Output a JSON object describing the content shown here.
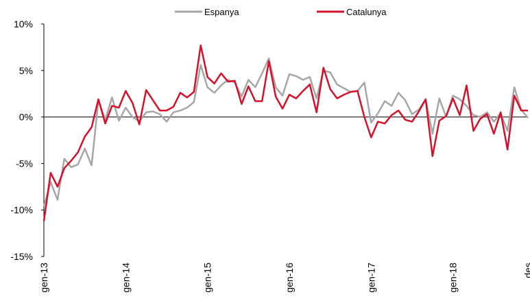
{
  "chart_data": {
    "type": "line",
    "categories": [
      "gen-13",
      null,
      null,
      null,
      null,
      null,
      null,
      null,
      null,
      null,
      null,
      null,
      "gen-14",
      null,
      null,
      null,
      null,
      null,
      null,
      null,
      null,
      null,
      null,
      null,
      "gen-15",
      null,
      null,
      null,
      null,
      null,
      null,
      null,
      null,
      null,
      null,
      null,
      "gen-16",
      null,
      null,
      null,
      null,
      null,
      null,
      null,
      null,
      null,
      null,
      null,
      "gen-17",
      null,
      null,
      null,
      null,
      null,
      null,
      null,
      null,
      null,
      null,
      null,
      "gen-18",
      null,
      null,
      null,
      null,
      null,
      null,
      null,
      null,
      null,
      null,
      "des"
    ],
    "series": [
      {
        "name": "Espanya",
        "color": "#a6a6a6",
        "values": [
          -9.6,
          -7.0,
          -8.9,
          -4.5,
          -5.4,
          -5.1,
          -3.4,
          -5.2,
          1.8,
          -0.3,
          2.1,
          -0.4,
          1.0,
          0.0,
          -0.5,
          0.5,
          0.6,
          0.3,
          -0.5,
          0.5,
          0.7,
          1.0,
          1.6,
          5.6,
          3.2,
          2.6,
          3.4,
          4.0,
          3.7,
          2.2,
          4.0,
          3.2,
          4.7,
          6.3,
          3.2,
          2.3,
          4.6,
          4.4,
          4.0,
          4.3,
          2.0,
          5.0,
          4.8,
          3.5,
          3.1,
          2.7,
          2.8,
          3.7,
          -0.6,
          0.4,
          1.7,
          1.2,
          2.6,
          1.8,
          0.3,
          0.8,
          1.9,
          -1.8,
          2.0,
          0.0,
          2.3,
          1.9,
          1.2,
          0.2,
          0.0,
          0.5,
          -0.5,
          0.4,
          -1.5,
          3.2,
          0.8,
          -0.1
        ]
      },
      {
        "name": "Catalunya",
        "color": "#d7102a",
        "values": [
          -11.2,
          -6.0,
          -7.5,
          -5.5,
          -4.7,
          -3.8,
          -2.1,
          -1.1,
          1.9,
          -0.7,
          1.2,
          1.0,
          2.8,
          1.5,
          -0.8,
          2.9,
          1.8,
          0.7,
          0.7,
          1.1,
          2.6,
          2.1,
          2.7,
          7.7,
          4.3,
          3.6,
          4.7,
          3.8,
          3.9,
          1.4,
          3.3,
          1.7,
          1.7,
          6.0,
          2.2,
          0.9,
          2.4,
          2.0,
          2.8,
          3.5,
          0.5,
          5.3,
          3.0,
          2.0,
          2.4,
          2.7,
          2.8,
          0.0,
          -2.2,
          -0.5,
          -0.7,
          0.2,
          0.7,
          -0.3,
          -0.5,
          0.6,
          1.9,
          -4.2,
          -0.4,
          0.1,
          2.0,
          0.2,
          3.4,
          -1.5,
          -0.2,
          0.3,
          -1.8,
          0.5,
          -3.5,
          2.3,
          0.7,
          0.7
        ]
      }
    ],
    "ylim": [
      -15,
      10
    ],
    "yticks": [
      {
        "value": -15,
        "label": "-15%"
      },
      {
        "value": -10,
        "label": "-10%"
      },
      {
        "value": -5,
        "label": "-5%"
      },
      {
        "value": 0,
        "label": "0%"
      },
      {
        "value": 5,
        "label": "5%"
      },
      {
        "value": 10,
        "label": "10%"
      }
    ],
    "legend": "top"
  }
}
